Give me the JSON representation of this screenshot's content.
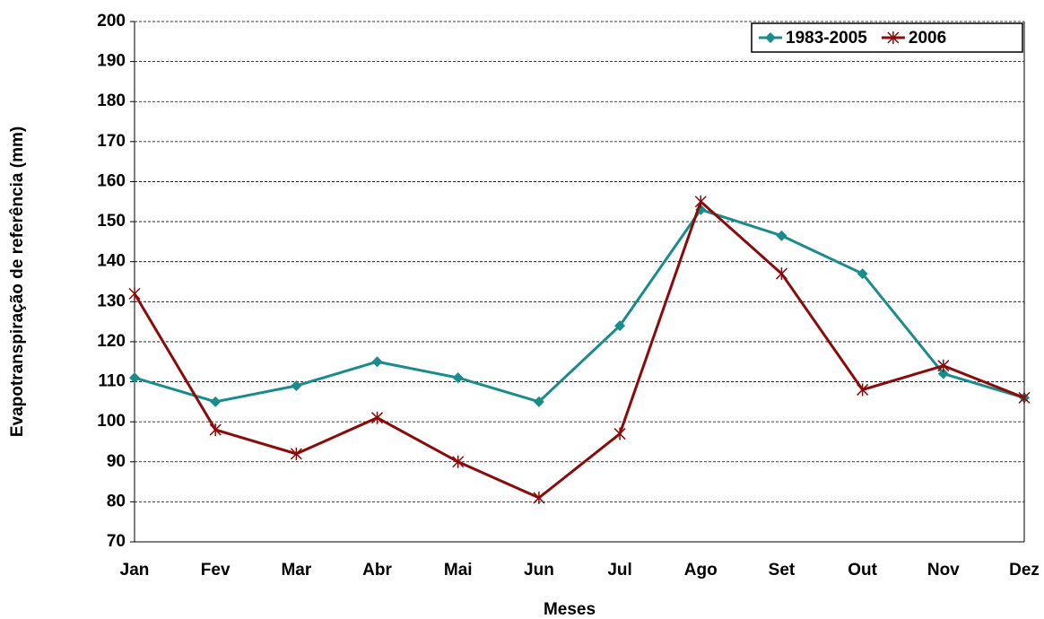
{
  "chart_data": {
    "type": "line",
    "x_label": "Meses",
    "y_label": "Evapotranspiração de referência (mm)",
    "categories": [
      "Jan",
      "Fev",
      "Mar",
      "Abr",
      "Mai",
      "Jun",
      "Jul",
      "Ago",
      "Set",
      "Out",
      "Nov",
      "Dez"
    ],
    "series": [
      {
        "name": "1983-2005",
        "color": "#1a8c8c",
        "marker": "diamond",
        "values": [
          111,
          105,
          109,
          115,
          111,
          105,
          124,
          153,
          146.5,
          137,
          112,
          106
        ]
      },
      {
        "name": "2006",
        "color": "#8b0a0a",
        "marker": "star",
        "values": [
          132,
          98,
          92,
          101,
          90,
          81,
          97,
          155,
          137,
          108,
          114,
          106
        ]
      }
    ],
    "ylim": [
      70,
      200
    ],
    "yticks": [
      70,
      80,
      90,
      100,
      110,
      120,
      130,
      140,
      150,
      160,
      170,
      180,
      190,
      200
    ],
    "grid": true,
    "legend": "top-right"
  }
}
